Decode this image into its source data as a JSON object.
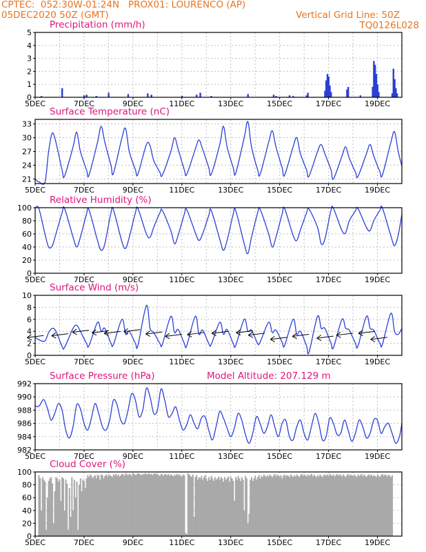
{
  "header": {
    "line1": "CPTEC:  052:30W-01:24N   PROX01: LOURENCO (AP)",
    "line2": "05DEC2020 50Z (GMT)",
    "grid_note": "Vertical Grid Line: 50Z",
    "code": "TQ0126L028"
  },
  "colors": {
    "header": "#e8741e",
    "panel_title": "#e0147a",
    "line": "#2a3fd6",
    "bar": "#2a3fd6",
    "cloud": "#a9a9a9",
    "grid": "#bdbdbd",
    "arrow": "#000000"
  },
  "x_axis": {
    "ticks": [
      {
        "day": 0,
        "label": "5DEC"
      },
      {
        "day": 2,
        "label": "7DEC"
      },
      {
        "day": 4,
        "label": "9DEC"
      },
      {
        "day": 6,
        "label": "11DEC"
      },
      {
        "day": 8,
        "label": "13DEC"
      },
      {
        "day": 10,
        "label": "15DEC"
      },
      {
        "day": 12,
        "label": "17DEC"
      },
      {
        "day": 14,
        "label": "19DEC"
      }
    ],
    "days_span": 15
  },
  "chart_data": [
    {
      "type": "bar",
      "title": "Precipitation (mm/h)",
      "ylim": [
        0,
        5
      ],
      "yticks": [
        0,
        1,
        2,
        3,
        4,
        5
      ],
      "grid": true,
      "points": [
        {
          "day": 0.25,
          "value": 0.1
        },
        {
          "day": 1.1,
          "value": 0.7
        },
        {
          "day": 2.0,
          "value": 0.15
        },
        {
          "day": 2.1,
          "value": 0.2
        },
        {
          "day": 2.5,
          "value": 0.1
        },
        {
          "day": 3.0,
          "value": 0.35
        },
        {
          "day": 3.8,
          "value": 0.25
        },
        {
          "day": 4.6,
          "value": 0.3
        },
        {
          "day": 4.75,
          "value": 0.2
        },
        {
          "day": 6.0,
          "value": 0.1
        },
        {
          "day": 6.6,
          "value": 0.2
        },
        {
          "day": 6.75,
          "value": 0.35
        },
        {
          "day": 7.2,
          "value": 0.1
        },
        {
          "day": 8.7,
          "value": 0.25
        },
        {
          "day": 9.75,
          "value": 0.2
        },
        {
          "day": 9.85,
          "value": 0.1
        },
        {
          "day": 10.4,
          "value": 0.15
        },
        {
          "day": 10.55,
          "value": 0.1
        },
        {
          "day": 11.1,
          "value": 0.15
        },
        {
          "day": 11.15,
          "value": 0.35
        },
        {
          "day": 11.85,
          "value": 0.5
        },
        {
          "day": 11.9,
          "value": 1.3
        },
        {
          "day": 11.95,
          "value": 1.8
        },
        {
          "day": 12.0,
          "value": 1.6
        },
        {
          "day": 12.05,
          "value": 0.9
        },
        {
          "day": 12.1,
          "value": 0.4
        },
        {
          "day": 12.75,
          "value": 0.6
        },
        {
          "day": 12.8,
          "value": 0.8
        },
        {
          "day": 13.3,
          "value": 0.15
        },
        {
          "day": 13.8,
          "value": 0.8
        },
        {
          "day": 13.85,
          "value": 2.8
        },
        {
          "day": 13.9,
          "value": 2.5
        },
        {
          "day": 13.95,
          "value": 1.8
        },
        {
          "day": 14.0,
          "value": 1.0
        },
        {
          "day": 14.05,
          "value": 0.4
        },
        {
          "day": 14.6,
          "value": 0.3
        },
        {
          "day": 14.65,
          "value": 2.2
        },
        {
          "day": 14.7,
          "value": 1.4
        },
        {
          "day": 14.75,
          "value": 0.7
        },
        {
          "day": 14.8,
          "value": 0.3
        }
      ]
    },
    {
      "type": "line",
      "title": "Surface Temperature (nC)",
      "ylim": [
        20,
        34
      ],
      "yticks": [
        21,
        24,
        27,
        30,
        33
      ],
      "grid": true,
      "x": [
        0,
        0.1,
        0.15,
        0.4,
        0.55,
        0.7,
        0.85,
        1.1,
        1.2,
        1.55,
        1.7,
        1.85,
        2.1,
        2.2,
        2.55,
        2.7,
        2.85,
        3.1,
        3.2,
        3.55,
        3.7,
        3.85,
        4.1,
        4.2,
        4.55,
        4.7,
        4.85,
        5.1,
        5.2,
        5.55,
        5.7,
        5.85,
        6.1,
        6.2,
        6.55,
        6.7,
        6.85,
        7.1,
        7.2,
        7.55,
        7.7,
        7.85,
        8.1,
        8.2,
        8.55,
        8.7,
        8.85,
        9.1,
        9.2,
        9.55,
        9.7,
        9.85,
        10.1,
        10.2,
        10.55,
        10.7,
        10.85,
        11.1,
        11.2,
        11.55,
        11.7,
        11.85,
        12.1,
        12.2,
        12.55,
        12.7,
        12.85,
        13.1,
        13.2,
        13.55,
        13.7,
        13.85,
        14.1,
        14.2,
        14.55,
        14.7,
        14.85,
        15.0
      ],
      "y": [
        21,
        20.5,
        20.4,
        20.3,
        27,
        31,
        29,
        23,
        21.6,
        28,
        31.2,
        27,
        23,
        21.8,
        29,
        32.5,
        29,
        24,
        22.2,
        30,
        32,
        27,
        23,
        22,
        28.5,
        28.2,
        25,
        22.5,
        21.8,
        27,
        30,
        27.5,
        23,
        22,
        27.5,
        29.5,
        27.5,
        23.5,
        22,
        28.5,
        32.5,
        28,
        23.5,
        22.2,
        30,
        33.5,
        28,
        23,
        22,
        29,
        31.5,
        28,
        23.5,
        21.8,
        28,
        30,
        26.5,
        23,
        21.6,
        27,
        28.5,
        26.5,
        23,
        21,
        26,
        28,
        25.5,
        22.5,
        21.5,
        26.5,
        28.5,
        26,
        22.6,
        21.8,
        29,
        31.3,
        27,
        23.8
      ]
    },
    {
      "type": "line",
      "title": "Relative Humidity (%)",
      "ylim": [
        0,
        100
      ],
      "yticks": [
        0,
        20,
        40,
        60,
        80,
        100
      ],
      "grid": true,
      "x": [
        0,
        0.15,
        0.4,
        0.55,
        0.7,
        0.85,
        1.1,
        1.2,
        1.55,
        1.7,
        1.85,
        2.1,
        2.2,
        2.55,
        2.7,
        2.85,
        3.1,
        3.2,
        3.55,
        3.7,
        3.85,
        4.1,
        4.2,
        4.55,
        4.7,
        4.85,
        5.1,
        5.2,
        5.55,
        5.7,
        5.85,
        6.1,
        6.2,
        6.55,
        6.7,
        6.85,
        7.1,
        7.2,
        7.55,
        7.7,
        7.85,
        8.1,
        8.2,
        8.55,
        8.7,
        8.85,
        9.1,
        9.2,
        9.55,
        9.7,
        9.85,
        10.1,
        10.2,
        10.55,
        10.7,
        10.85,
        11.1,
        11.2,
        11.55,
        11.7,
        11.85,
        12.1,
        12.2,
        12.55,
        12.7,
        12.85,
        13.1,
        13.2,
        13.55,
        13.7,
        13.85,
        14.1,
        14.2,
        14.55,
        14.7,
        14.85,
        15.0
      ],
      "y": [
        100,
        99,
        60,
        40,
        42,
        60,
        92,
        99,
        55,
        40,
        55,
        90,
        97,
        50,
        35,
        45,
        92,
        97,
        48,
        38,
        55,
        92,
        99,
        60,
        55,
        70,
        92,
        96,
        65,
        45,
        58,
        90,
        97,
        62,
        50,
        60,
        88,
        96,
        52,
        35,
        50,
        90,
        96,
        45,
        30,
        55,
        92,
        98,
        60,
        40,
        55,
        90,
        99,
        58,
        50,
        66,
        92,
        98,
        70,
        45,
        52,
        96,
        99,
        65,
        62,
        80,
        95,
        99,
        70,
        65,
        80,
        96,
        100,
        57,
        42,
        58,
        90
      ]
    },
    {
      "type": "line",
      "title": "Surface Wind (m/s)",
      "ylim": [
        0,
        10
      ],
      "yticks": [
        0,
        2,
        4,
        6,
        8,
        10
      ],
      "grid": true,
      "x": [
        0,
        0.15,
        0.4,
        0.55,
        0.7,
        0.85,
        1.1,
        1.2,
        1.55,
        1.7,
        1.85,
        2.1,
        2.2,
        2.55,
        2.7,
        2.85,
        3.1,
        3.2,
        3.55,
        3.7,
        3.85,
        4.1,
        4.2,
        4.55,
        4.7,
        4.85,
        5.1,
        5.2,
        5.55,
        5.7,
        5.85,
        6.1,
        6.2,
        6.55,
        6.7,
        6.85,
        7.1,
        7.2,
        7.55,
        7.7,
        7.85,
        8.1,
        8.2,
        8.55,
        8.7,
        8.85,
        9.1,
        9.2,
        9.55,
        9.7,
        9.85,
        10.1,
        10.2,
        10.55,
        10.7,
        10.85,
        11.1,
        11.2,
        11.55,
        11.7,
        11.85,
        12.1,
        12.2,
        12.55,
        12.7,
        12.85,
        13.1,
        13.2,
        13.55,
        13.7,
        13.85,
        14.1,
        14.2,
        14.55,
        14.7,
        14.85,
        15.0
      ],
      "y": [
        3,
        2.6,
        2.4,
        3.8,
        4.5,
        4.0,
        1.5,
        1.3,
        4.5,
        5.0,
        4.0,
        2.0,
        1.6,
        5.5,
        4.0,
        4.5,
        2.0,
        1.8,
        6.0,
        3.5,
        4.0,
        2.0,
        1.6,
        8.3,
        4.5,
        3.8,
        2.0,
        1.8,
        6.5,
        3.8,
        4.3,
        2.0,
        1.6,
        6.5,
        3.5,
        4.2,
        2.0,
        1.8,
        5.5,
        3.5,
        4.3,
        2.0,
        1.6,
        6.0,
        4.0,
        4.2,
        2.0,
        2.2,
        5.5,
        3.8,
        4.2,
        2.2,
        1.6,
        6.0,
        3.5,
        4.0,
        1.6,
        0.5,
        6.5,
        4.5,
        4.5,
        2.0,
        1.3,
        6.0,
        4.5,
        4.2,
        2.0,
        1.5,
        6.5,
        4.5,
        4.2,
        2.0,
        1.8,
        7.0,
        4.0,
        3.5,
        4.5
      ],
      "arrows": [
        {
          "day": 0.35,
          "value": 3.3
        },
        {
          "day": 1.35,
          "value": 3.6
        },
        {
          "day": 2.2,
          "value": 4.2
        },
        {
          "day": 3.0,
          "value": 4.1
        },
        {
          "day": 3.5,
          "value": 4.0
        },
        {
          "day": 4.3,
          "value": 4.3
        },
        {
          "day": 5.2,
          "value": 3.9
        },
        {
          "day": 6.0,
          "value": 3.5
        },
        {
          "day": 6.9,
          "value": 3.8
        },
        {
          "day": 7.9,
          "value": 4.0
        },
        {
          "day": 8.9,
          "value": 4.1
        },
        {
          "day": 9.4,
          "value": 3.7
        },
        {
          "day": 10.3,
          "value": 3.0
        },
        {
          "day": 11.2,
          "value": 3.5
        },
        {
          "day": 12.2,
          "value": 3.2
        },
        {
          "day": 13.0,
          "value": 3.7
        },
        {
          "day": 13.9,
          "value": 4.0
        },
        {
          "day": 14.4,
          "value": 3.0
        }
      ]
    },
    {
      "type": "line",
      "title": "Surface Pressure (hPa)",
      "annotation": "Model Altitude: 207.129 m",
      "ylim": [
        982,
        992
      ],
      "yticks": [
        982,
        984,
        986,
        988,
        990,
        992
      ],
      "grid": true,
      "x": [
        0,
        0.1,
        0.2,
        0.35,
        0.5,
        0.65,
        0.8,
        0.95,
        1.1,
        1.25,
        1.4,
        1.55,
        1.7,
        1.85,
        2.0,
        2.15,
        2.3,
        2.45,
        2.6,
        2.75,
        2.9,
        3.05,
        3.2,
        3.35,
        3.5,
        3.65,
        3.8,
        3.95,
        4.1,
        4.25,
        4.4,
        4.55,
        4.7,
        4.85,
        5.0,
        5.15,
        5.3,
        5.45,
        5.6,
        5.75,
        5.9,
        6.05,
        6.2,
        6.35,
        6.5,
        6.65,
        6.8,
        6.95,
        7.1,
        7.25,
        7.4,
        7.55,
        7.7,
        7.85,
        8.0,
        8.15,
        8.3,
        8.45,
        8.6,
        8.75,
        8.9,
        9.05,
        9.2,
        9.35,
        9.5,
        9.65,
        9.8,
        9.95,
        10.1,
        10.25,
        10.4,
        10.55,
        10.7,
        10.85,
        11.0,
        11.15,
        11.3,
        11.45,
        11.6,
        11.75,
        11.9,
        12.05,
        12.2,
        12.35,
        12.5,
        12.65,
        12.8,
        12.95,
        13.1,
        13.25,
        13.4,
        13.55,
        13.7,
        13.85,
        14.0,
        14.15,
        14.3,
        14.45,
        14.6,
        14.75,
        14.9,
        15.0
      ],
      "y": [
        988.7,
        988.5,
        988.8,
        989.6,
        988.3,
        986.5,
        987.5,
        989.0,
        988.0,
        985.0,
        983.8,
        985.5,
        988.8,
        988.2,
        986.0,
        985.0,
        986.8,
        989.0,
        987.5,
        985.5,
        985.0,
        986.5,
        989.5,
        988.8,
        986.5,
        986.0,
        988.0,
        990.5,
        989.5,
        987.0,
        988.0,
        991.3,
        990.0,
        987.5,
        988.0,
        991.2,
        989.5,
        987.0,
        987.5,
        988.5,
        986.5,
        985.0,
        985.8,
        987.3,
        986.0,
        985.2,
        986.8,
        987.0,
        985.0,
        983.5,
        985.5,
        987.8,
        986.8,
        985.3,
        984.0,
        985.3,
        987.5,
        986.5,
        984.3,
        983.0,
        984.5,
        987.0,
        986.0,
        984.5,
        985.5,
        987.3,
        985.5,
        984.0,
        986.0,
        986.5,
        984.0,
        983.5,
        985.5,
        986.5,
        984.5,
        983.5,
        985.5,
        987.5,
        986.0,
        983.5,
        984.0,
        986.8,
        986.0,
        984.3,
        984.5,
        986.5,
        985.0,
        983.3,
        984.5,
        986.5,
        985.5,
        983.8,
        984.5,
        986.5,
        986.5,
        984.5,
        985.5,
        986.0,
        984.5,
        983.0,
        984.0,
        986.0
      ]
    },
    {
      "type": "bar",
      "title": "Cloud Cover (%)",
      "ylim": [
        0,
        100
      ],
      "yticks": [
        0,
        20,
        40,
        60,
        80,
        100
      ],
      "grid": true,
      "x_start": 0.15,
      "x_step": 0.05,
      "values": [
        95,
        90,
        40,
        92,
        88,
        85,
        10,
        60,
        86,
        90,
        92,
        82,
        20,
        70,
        92,
        90,
        85,
        88,
        55,
        92,
        90,
        40,
        88,
        82,
        10,
        75,
        30,
        92,
        40,
        88,
        60,
        85,
        10,
        80,
        90,
        70,
        88,
        86,
        75,
        90,
        95,
        92,
        96,
        94,
        90,
        93,
        95,
        90,
        96,
        94,
        88,
        96,
        95,
        90,
        94,
        96,
        93,
        96,
        95,
        94,
        92,
        96,
        95,
        97,
        94,
        96,
        93,
        95,
        97,
        96,
        94,
        98,
        96,
        95,
        97,
        96,
        94,
        98,
        97,
        95,
        96,
        98,
        97,
        96,
        95,
        97,
        96,
        98,
        97,
        96,
        98,
        96,
        97,
        95,
        97,
        98,
        96,
        97,
        95,
        94,
        97,
        96,
        94,
        97,
        96,
        95,
        97,
        94,
        96,
        95,
        93,
        96,
        94,
        97,
        95,
        96,
        94,
        92,
        96,
        95,
        5,
        3,
        98,
        96,
        94,
        92,
        96,
        30,
        92,
        95,
        88,
        92,
        90,
        94,
        88,
        92,
        95,
        90,
        86,
        92,
        88,
        94,
        90,
        86,
        92,
        88,
        90,
        93,
        88,
        92,
        90,
        85,
        92,
        88,
        90,
        93,
        85,
        92,
        90,
        86,
        55,
        92,
        88,
        94,
        90,
        86,
        92,
        88,
        40,
        94,
        90,
        20,
        35,
        88,
        92,
        86,
        90,
        94,
        88,
        92,
        95,
        90,
        94,
        92,
        96,
        94,
        92,
        95,
        93,
        96,
        94,
        92,
        95,
        97,
        93,
        96,
        94,
        92,
        95,
        90,
        94,
        96,
        93,
        95,
        94,
        92,
        96,
        94,
        92,
        95,
        93,
        96,
        94,
        92,
        95,
        97,
        94,
        96,
        95,
        93,
        96,
        94,
        95,
        97,
        93,
        96,
        94,
        92,
        95,
        93,
        96,
        94,
        92,
        95,
        96,
        94,
        96,
        93,
        97,
        95,
        94,
        96,
        93,
        95,
        97,
        94,
        96,
        95,
        93,
        96,
        94,
        92,
        95,
        97,
        94,
        96,
        95,
        93,
        96,
        94,
        92,
        96,
        94,
        95,
        97,
        93,
        96,
        94,
        92,
        95,
        96,
        94,
        96,
        93,
        95,
        94,
        92,
        96,
        94,
        92,
        95,
        97,
        94,
        96,
        95,
        93,
        96,
        94,
        92,
        95
      ]
    }
  ]
}
